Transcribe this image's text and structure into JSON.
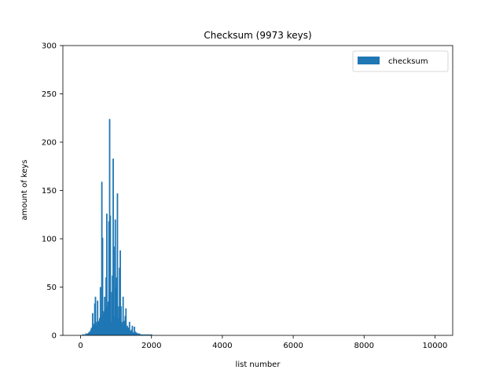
{
  "chart_data": {
    "type": "bar",
    "title": "Checksum (9973 keys)",
    "xlabel": "list number",
    "ylabel": "amount of keys",
    "xlim": [
      -500,
      10500
    ],
    "ylim": [
      0,
      300
    ],
    "xticks": [
      0,
      2000,
      4000,
      6000,
      8000,
      10000
    ],
    "xtick_labels": [
      "0",
      "2000",
      "4000",
      "6000",
      "8000",
      "10000"
    ],
    "yticks": [
      0,
      50,
      100,
      150,
      200,
      250,
      300
    ],
    "ytick_labels": [
      "0",
      "50",
      "100",
      "150",
      "200",
      "250",
      "300"
    ],
    "grid": false,
    "legend_position": "upper right",
    "series": [
      {
        "name": "checksum",
        "color": "#1f77b4",
        "x": [
          60,
          100,
          150,
          190,
          230,
          260,
          290,
          310,
          340,
          360,
          380,
          400,
          420,
          440,
          460,
          480,
          500,
          520,
          540,
          560,
          580,
          600,
          620,
          640,
          660,
          680,
          700,
          720,
          740,
          760,
          780,
          800,
          820,
          840,
          860,
          880,
          900,
          920,
          940,
          960,
          980,
          1000,
          1020,
          1040,
          1060,
          1080,
          1100,
          1120,
          1140,
          1160,
          1180,
          1200,
          1220,
          1240,
          1260,
          1280,
          1300,
          1320,
          1340,
          1360,
          1380,
          1400,
          1420,
          1440,
          1460,
          1480,
          1500,
          1520,
          1540,
          1560,
          1580,
          1600,
          1620,
          1640,
          1660,
          1680,
          1700,
          1720,
          1760,
          1800,
          1840,
          1880,
          1920,
          1960,
          2000
        ],
        "values": [
          1,
          1,
          2,
          2,
          3,
          4,
          6,
          8,
          23,
          10,
          12,
          33,
          40,
          11,
          14,
          36,
          13,
          15,
          18,
          50,
          20,
          159,
          101,
          22,
          25,
          40,
          28,
          60,
          126,
          30,
          35,
          118,
          224,
          124,
          14,
          45,
          62,
          183,
          92,
          20,
          120,
          50,
          60,
          147,
          18,
          30,
          70,
          88,
          30,
          14,
          12,
          40,
          10,
          15,
          20,
          28,
          8,
          10,
          6,
          8,
          14,
          5,
          4,
          6,
          10,
          3,
          3,
          9,
          4,
          2,
          3,
          2,
          2,
          1,
          2,
          1,
          1,
          1,
          1,
          1,
          1,
          1,
          1,
          1,
          1
        ]
      }
    ]
  }
}
